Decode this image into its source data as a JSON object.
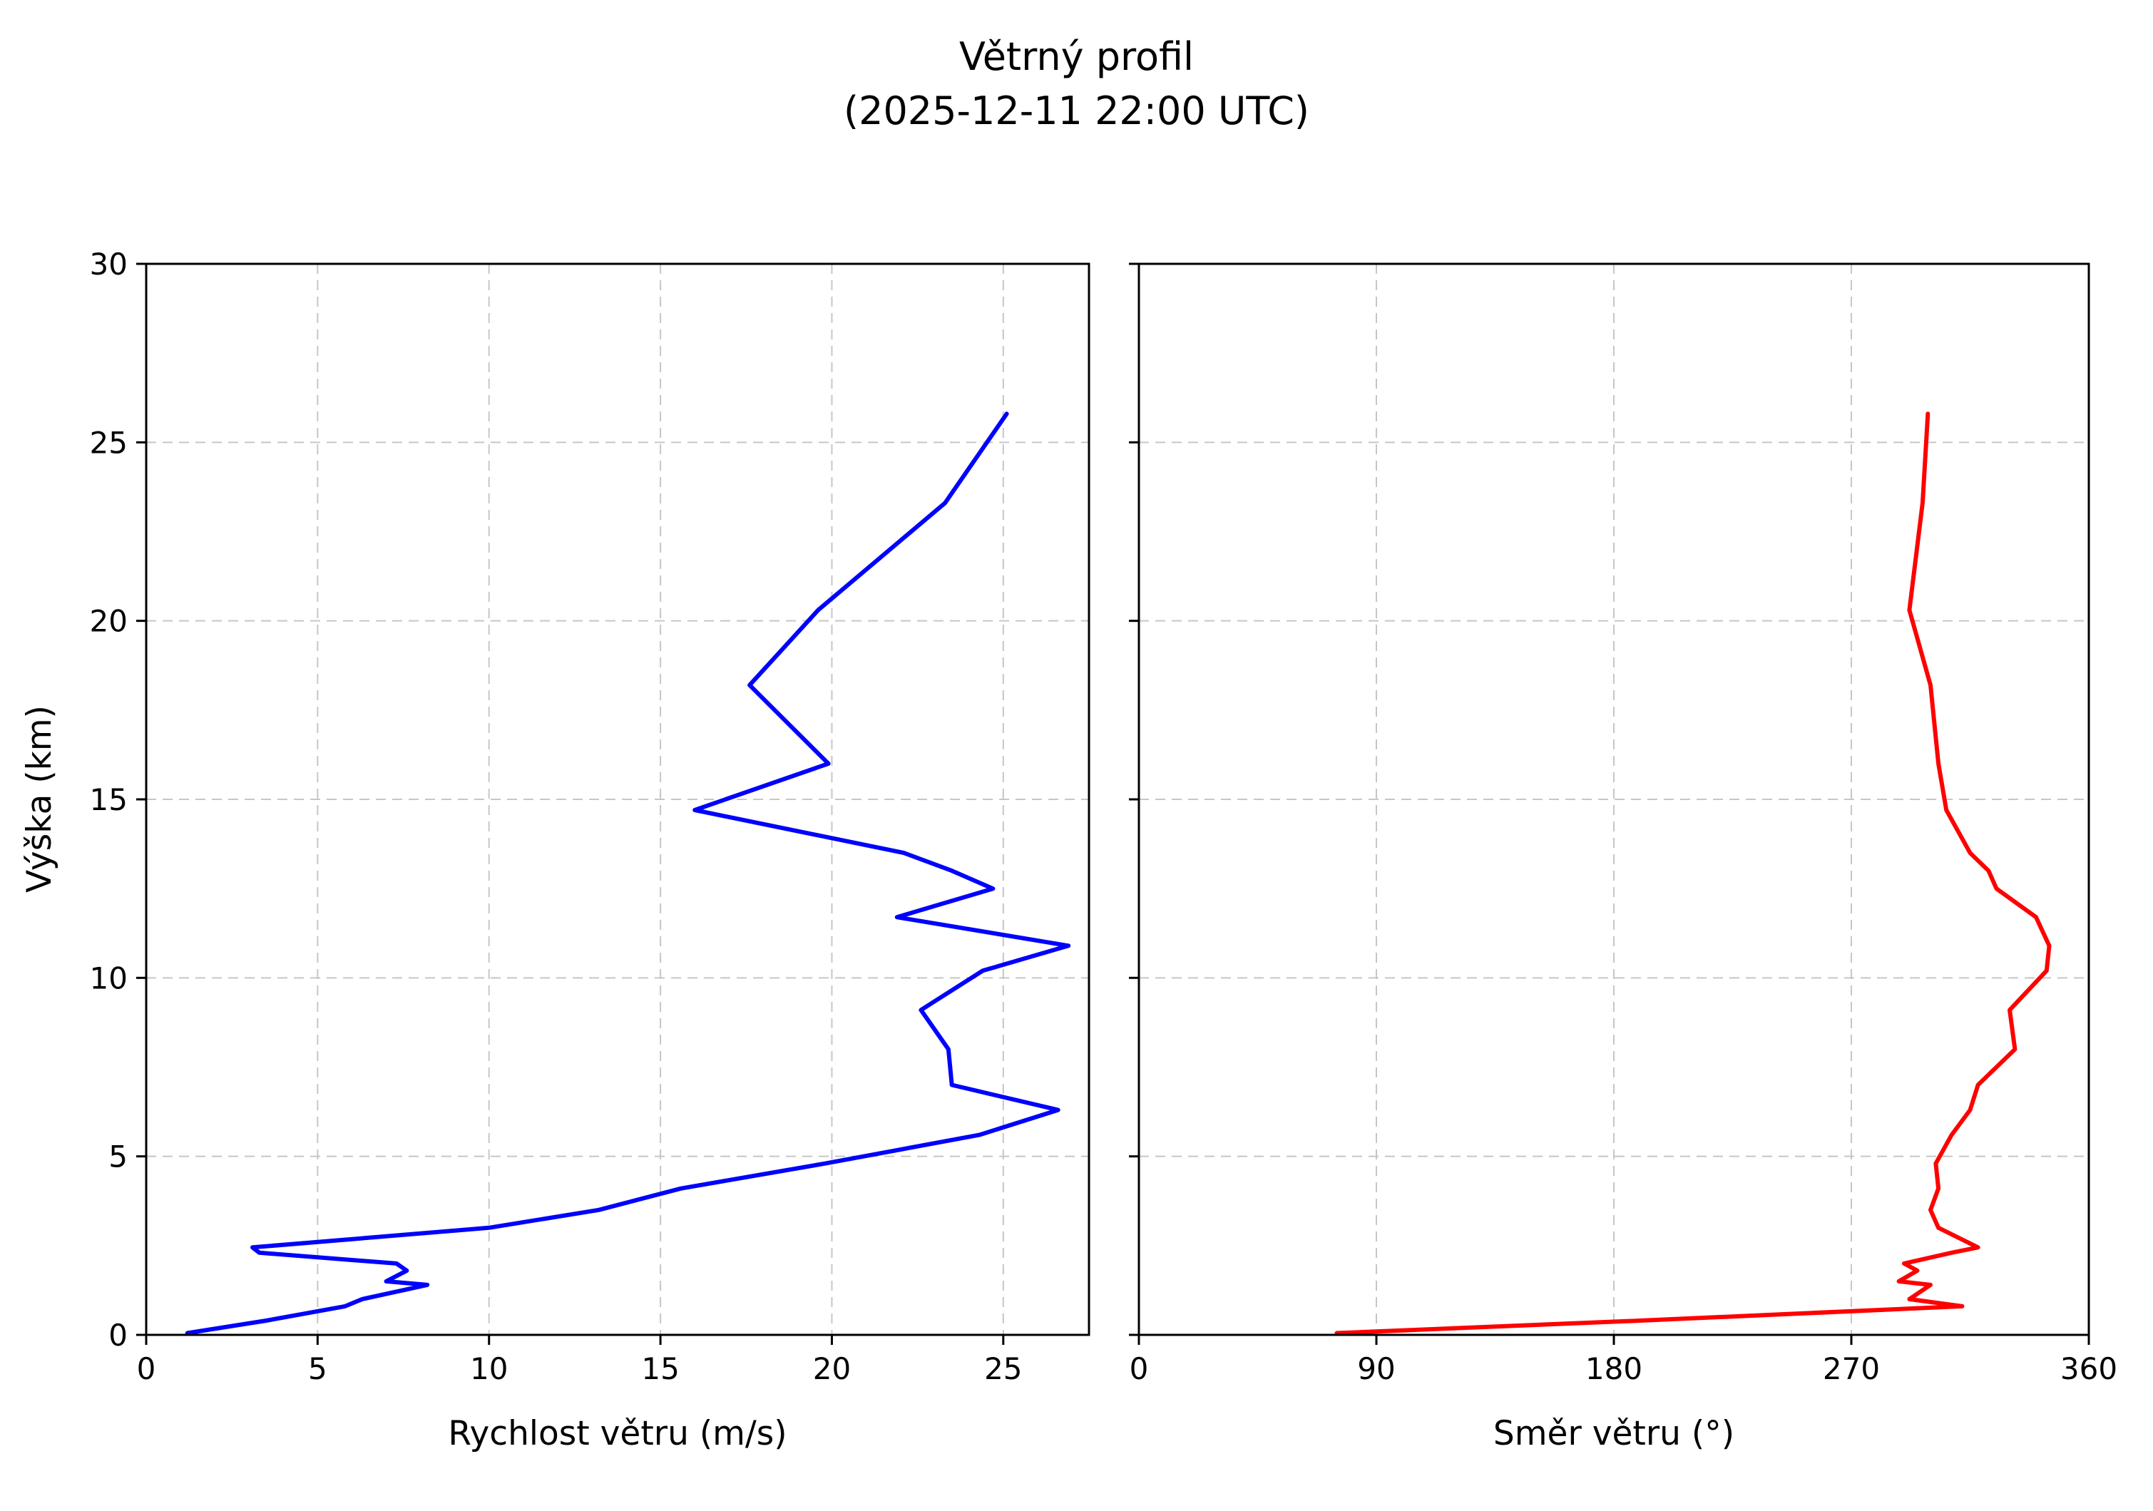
{
  "title": {
    "line1": "Větrný profil",
    "line2": "(2025-12-11 22:00 UTC)"
  },
  "colors": {
    "background": "#ffffff",
    "frame": "#000000",
    "grid": "#c6c6c6",
    "tick_text": "#000000",
    "speed_line": "#0000ff",
    "direction_line": "#ff0000"
  },
  "chart_data": {
    "type": "line",
    "title": "Větrný profil (2025-12-11 22:00 UTC)",
    "grid": true,
    "grid_style": "dashed",
    "legend": "none",
    "shared_y": {
      "label": "Výška (km)",
      "lim": [
        0,
        30
      ],
      "ticks": [
        0,
        5,
        10,
        15,
        20,
        25,
        30
      ]
    },
    "heights_km": [
      0.05,
      0.4,
      0.8,
      1.0,
      1.4,
      1.5,
      1.8,
      2.0,
      2.3,
      2.45,
      3.0,
      3.5,
      4.1,
      4.8,
      5.6,
      6.3,
      7.0,
      8.0,
      9.1,
      10.2,
      10.9,
      11.7,
      12.5,
      13.0,
      13.5,
      14.7,
      16.0,
      18.2,
      20.3,
      23.3,
      25.8
    ],
    "panels": [
      {
        "name": "wind-speed",
        "xlabel": "Rychlost větru (m/s)",
        "xlim": [
          0,
          27.5
        ],
        "xticks": [
          0,
          5,
          10,
          15,
          20,
          25
        ],
        "color_key": "speed_line",
        "values": [
          1.2,
          3.5,
          5.8,
          6.3,
          8.2,
          7.0,
          7.6,
          7.3,
          3.3,
          3.1,
          10.0,
          13.2,
          15.6,
          19.8,
          24.3,
          26.6,
          23.5,
          23.4,
          22.6,
          24.4,
          26.9,
          21.9,
          24.7,
          23.5,
          22.1,
          16.0,
          19.9,
          17.6,
          19.6,
          23.3,
          25.1
        ]
      },
      {
        "name": "wind-direction",
        "xlabel": "Směr větru (°)",
        "xlim": [
          0,
          360
        ],
        "xticks": [
          0,
          90,
          180,
          270,
          360
        ],
        "color_key": "direction_line",
        "values": [
          75,
          190,
          312,
          292,
          300,
          288,
          295,
          290,
          308,
          318,
          303,
          300,
          303,
          302,
          308,
          315,
          318,
          332,
          330,
          344,
          345,
          340,
          325,
          322,
          315,
          306,
          303,
          300,
          292,
          297,
          299
        ]
      }
    ]
  },
  "layout_note": ""
}
